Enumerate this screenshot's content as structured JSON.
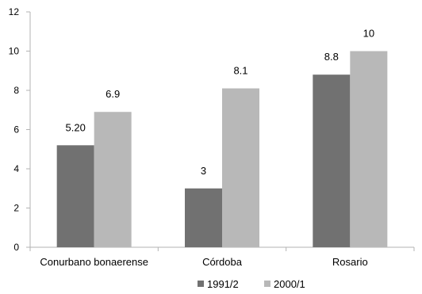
{
  "chart_data": {
    "type": "bar",
    "title": "",
    "xlabel": "",
    "ylabel": "",
    "categories": [
      "Conurbano bonaerense",
      "Córdoba",
      "Rosario"
    ],
    "series": [
      {
        "name": "1991/2",
        "color": "#717171",
        "values": [
          5.2,
          3,
          8.8
        ],
        "labels": [
          "5.20",
          "3",
          "8.8"
        ]
      },
      {
        "name": "2000/1",
        "color": "#b8b8b8",
        "values": [
          6.9,
          8.1,
          10
        ],
        "labels": [
          "6.9",
          "8.1",
          "10"
        ]
      }
    ],
    "ylim": [
      0,
      12
    ],
    "yticks": [
      0,
      2,
      4,
      6,
      8,
      10,
      12
    ],
    "grid": false,
    "legend_position": "bottom"
  }
}
